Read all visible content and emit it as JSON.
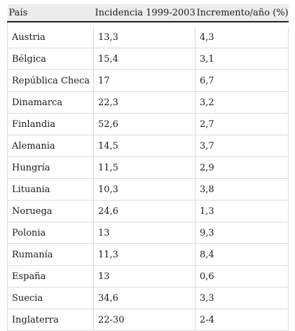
{
  "table": {
    "headers": [
      "País",
      "Incidencia 1999-2003",
      "Incremento/año (%)"
    ],
    "rows": [
      [
        "Austria",
        "13,3",
        "4,3"
      ],
      [
        "Bélgica",
        "15,4",
        "3,1"
      ],
      [
        "República Checa",
        "17",
        "6,7"
      ],
      [
        "Dinamarca",
        "22,3",
        "3,2"
      ],
      [
        "Finlandia",
        "52,6",
        "2,7"
      ],
      [
        "Alemania",
        "14,5",
        "3,7"
      ],
      [
        "Hungría",
        "11,5",
        "2,9"
      ],
      [
        "Lituania",
        "10,3",
        "3,8"
      ],
      [
        "Noruega",
        "24,6",
        "1,3"
      ],
      [
        "Polonia",
        "13",
        "9,3"
      ],
      [
        "Rumanía",
        "11,3",
        "8,4"
      ],
      [
        "España",
        "13",
        "0,6"
      ],
      [
        "Suecia",
        "34,6",
        "3,3"
      ],
      [
        "Inglaterra",
        "22-30",
        "2-4"
      ]
    ]
  }
}
